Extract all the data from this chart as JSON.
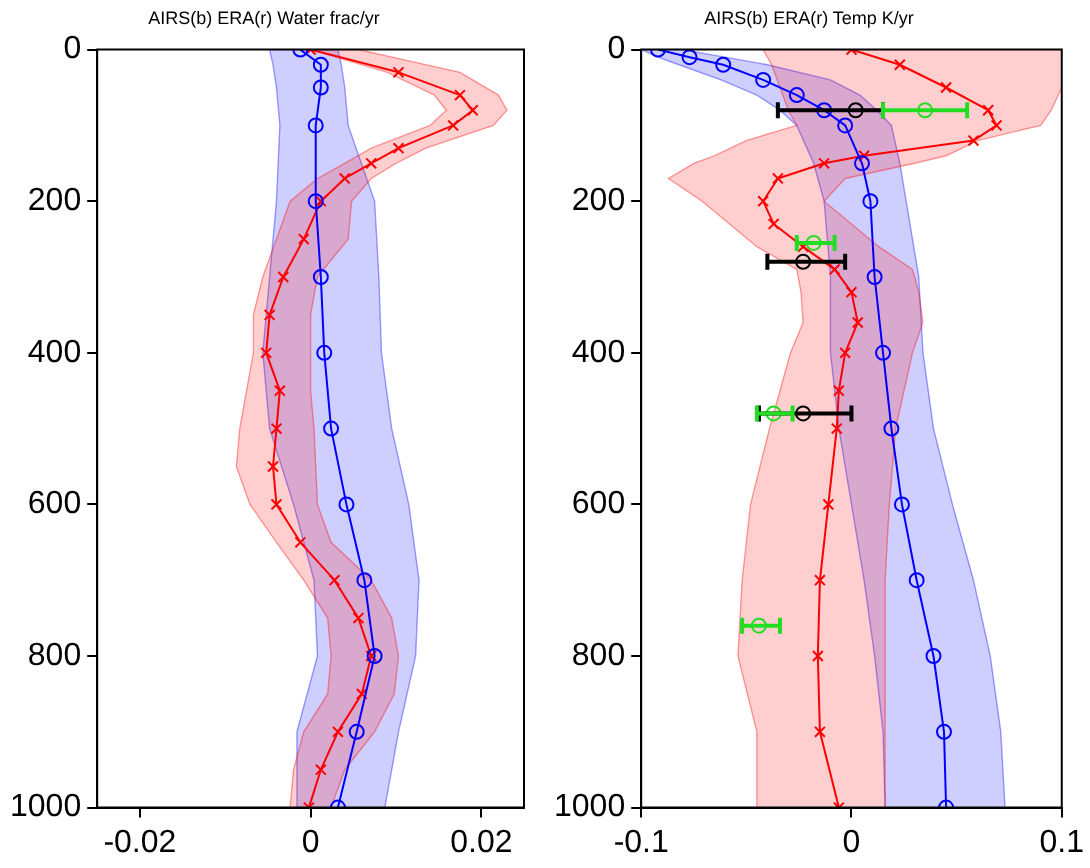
{
  "chart_data": [
    {
      "type": "line",
      "orientation": "horizontal",
      "title": "AIRS(b) ERA(r) Water frac/yr",
      "xlim": [
        -0.025,
        0.025
      ],
      "xticks": [
        -0.02,
        0,
        0.02
      ],
      "ylim": [
        1000,
        0
      ],
      "yticks": [
        0,
        200,
        400,
        600,
        800,
        1000
      ],
      "grid": false,
      "legend": false,
      "series": [
        {
          "color": "#0000ff",
          "marker": "circle",
          "values": [
            -0.0012,
            0.0012,
            0.0012,
            0.0006,
            0.0006,
            0.0012,
            0.0016,
            0.0024,
            0.0042,
            0.0063,
            0.0075,
            0.0054,
            0.0032
          ],
          "x": [
            0,
            20,
            50,
            100,
            200,
            300,
            400,
            500,
            600,
            700,
            800,
            900,
            1000
          ],
          "lower": [
            -0.0048,
            -0.0044,
            -0.004,
            -0.0036,
            -0.004,
            -0.0048,
            -0.0056,
            -0.0048,
            -0.002,
            0.0004,
            0.0008,
            -0.0016,
            -0.0016
          ],
          "upper": [
            0.0032,
            0.0036,
            0.004,
            0.0044,
            0.0075,
            0.008,
            0.0083,
            0.0095,
            0.0115,
            0.0127,
            0.0123,
            0.0103,
            0.0087
          ]
        },
        {
          "color": "#ff0000",
          "marker": "cross",
          "values": [
            0,
            0.0103,
            0.0175,
            0.019,
            0.0167,
            0.0103,
            0.0071,
            0.004,
            0.0012,
            -0.0008,
            -0.0032,
            -0.0048,
            -0.0052,
            -0.0036,
            -0.004,
            -0.0044,
            -0.004,
            -0.0012,
            0.0028,
            0.0056,
            0.0071,
            0.006,
            0.0032,
            0.0012,
            -0.0002
          ],
          "x": [
            0,
            30,
            60,
            80,
            100,
            130,
            150,
            170,
            200,
            250,
            300,
            350,
            400,
            450,
            500,
            550,
            600,
            650,
            700,
            750,
            800,
            850,
            900,
            950,
            1000
          ],
          "lower": [
            0,
            0.009,
            0.0145,
            0.0159,
            0.014,
            0.0071,
            0.004,
            0.0008,
            -0.0024,
            -0.004,
            -0.0056,
            -0.0067,
            -0.0067,
            -0.0075,
            -0.0083,
            -0.0087,
            -0.0071,
            -0.004,
            -0.0008,
            0.002,
            0.0024,
            0.002,
            -0.0008,
            -0.002,
            -0.0024
          ],
          "upper": [
            0.0056,
            0.0175,
            0.022,
            0.023,
            0.0214,
            0.0135,
            0.01,
            0.0071,
            0.0048,
            0.0044,
            0.0008,
            0,
            0,
            0,
            0.0004,
            0.0006,
            0.0008,
            0.0024,
            0.0071,
            0.0095,
            0.0103,
            0.0098,
            0.0075,
            0.004,
            0.0024
          ]
        }
      ]
    },
    {
      "type": "line",
      "orientation": "horizontal",
      "title": "AIRS(b) ERA(r) Temp K/yr",
      "xlim": [
        -0.1,
        0.1
      ],
      "xticks": [
        -0.1,
        0,
        0.1
      ],
      "ylim": [
        1000,
        0
      ],
      "yticks": [
        0,
        200,
        400,
        600,
        800,
        1000
      ],
      "grid": false,
      "legend": false,
      "series": [
        {
          "color": "#0000ff",
          "marker": "circle",
          "values": [
            -0.092,
            -0.077,
            -0.061,
            -0.042,
            -0.026,
            -0.013,
            -0.003,
            0.005,
            0.009,
            0.011,
            0.015,
            0.019,
            0.024,
            0.031,
            0.039,
            0.044,
            0.045
          ],
          "x": [
            0,
            10,
            20,
            40,
            60,
            80,
            100,
            150,
            200,
            300,
            400,
            500,
            600,
            700,
            800,
            900,
            1000
          ],
          "lower": [
            -0.1,
            -0.092,
            -0.082,
            -0.062,
            -0.045,
            -0.034,
            -0.026,
            -0.018,
            -0.013,
            -0.01,
            -0.01,
            -0.006,
            0,
            0.006,
            0.011,
            0.015,
            0.016
          ],
          "upper": [
            -0.081,
            -0.06,
            -0.04,
            -0.01,
            0.004,
            0.012,
            0.019,
            0.023,
            0.026,
            0.032,
            0.034,
            0.039,
            0.048,
            0.058,
            0.066,
            0.071,
            0.073
          ]
        },
        {
          "color": "#ff0000",
          "marker": "cross",
          "values": [
            0,
            0.023,
            0.045,
            0.065,
            0.069,
            0.058,
            0.006,
            -0.013,
            -0.035,
            -0.042,
            -0.037,
            -0.023,
            -0.008,
            0,
            0.003,
            -0.003,
            -0.006,
            -0.007,
            -0.011,
            -0.015,
            -0.016,
            -0.015,
            -0.006
          ],
          "x": [
            0,
            20,
            50,
            80,
            100,
            120,
            140,
            150,
            170,
            200,
            230,
            260,
            290,
            320,
            360,
            400,
            450,
            500,
            600,
            700,
            800,
            900,
            1000
          ],
          "lower": [
            -0.042,
            -0.038,
            -0.034,
            -0.03,
            -0.026,
            -0.05,
            -0.065,
            -0.075,
            -0.087,
            -0.071,
            -0.058,
            -0.045,
            -0.026,
            -0.024,
            -0.023,
            -0.029,
            -0.034,
            -0.039,
            -0.048,
            -0.052,
            -0.054,
            -0.045,
            -0.045
          ],
          "upper": [
            0.1,
            0.1,
            0.1,
            0.095,
            0.09,
            0.06,
            0.045,
            0.03,
            -0.003,
            -0.013,
            0,
            0.013,
            0.029,
            0.032,
            0.034,
            0.029,
            0.025,
            0.021,
            0.018,
            0.016,
            0.016,
            0.016,
            0.016
          ]
        },
        {
          "type": "scatter",
          "color": "#000000",
          "marker": "circle",
          "values": [
            0.002,
            -0.023,
            -0.023
          ],
          "x": [
            80,
            280,
            480
          ],
          "errors": [
            [
              -0.035,
              0.015
            ],
            [
              -0.04,
              -0.003
            ],
            [
              -0.044,
              0
            ]
          ]
        },
        {
          "type": "scatter",
          "color": "#22dd22",
          "marker": "circle",
          "values": [
            0.035,
            -0.018,
            -0.037,
            -0.044
          ],
          "x": [
            80,
            255,
            480,
            760
          ],
          "errors": [
            [
              0.015,
              0.055
            ],
            [
              -0.026,
              -0.008
            ],
            [
              -0.045,
              -0.028
            ],
            [
              -0.052,
              -0.034
            ]
          ]
        }
      ]
    }
  ]
}
